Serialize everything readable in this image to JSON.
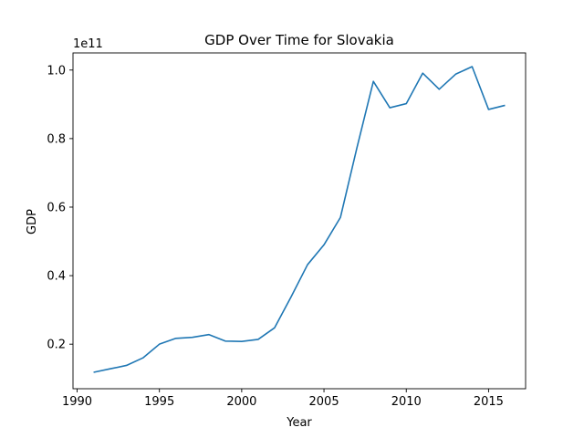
{
  "chart_data": {
    "type": "line",
    "title": "GDP Over Time for Slovakia",
    "xlabel": "Year",
    "ylabel": "GDP",
    "y_offset_label": "1e11",
    "xlim": [
      1989.75,
      2017.25
    ],
    "ylim": [
      0.07,
      1.05
    ],
    "x_ticks": [
      1990,
      1995,
      2000,
      2005,
      2010,
      2015
    ],
    "y_ticks": [
      0.2,
      0.4,
      0.6,
      0.8,
      1.0
    ],
    "y_tick_labels": [
      "0.2",
      "0.4",
      "0.6",
      "0.8",
      "1.0"
    ],
    "grid": false,
    "line_color": "#1f77b4",
    "series": [
      {
        "x": [
          1991,
          1992,
          1993,
          1994,
          1995,
          1996,
          1997,
          1998,
          1999,
          2000,
          2001,
          2002,
          2003,
          2004,
          2005,
          2006,
          2007,
          2008,
          2009,
          2010,
          2011,
          2012,
          2013,
          2014,
          2015,
          2016
        ],
        "values": [
          0.118,
          0.128,
          0.138,
          0.16,
          0.2,
          0.217,
          0.22,
          0.228,
          0.209,
          0.208,
          0.214,
          0.248,
          0.338,
          0.432,
          0.49,
          0.57,
          0.773,
          0.967,
          0.89,
          0.902,
          0.991,
          0.944,
          0.988,
          1.01,
          0.885,
          0.897
        ]
      }
    ]
  }
}
